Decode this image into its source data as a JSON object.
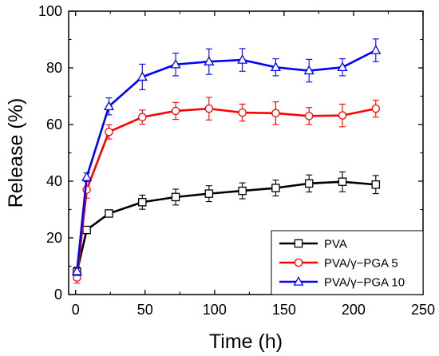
{
  "chart_data": {
    "type": "line",
    "xlabel": "Time (h)",
    "ylabel": "Release (%)",
    "xlim": [
      -5,
      250
    ],
    "ylim": [
      0,
      100
    ],
    "xticks": [
      0,
      50,
      100,
      150,
      200,
      250
    ],
    "yticks": [
      0,
      20,
      40,
      60,
      80,
      100
    ],
    "xtick_labels": [
      "0",
      "50",
      "100",
      "150",
      "200",
      "250"
    ],
    "ytick_labels": [
      "0",
      "20",
      "40",
      "60",
      "80",
      "100"
    ],
    "grid": false,
    "legend_position": "bottom-right",
    "x": [
      1,
      8,
      24,
      48,
      72,
      96,
      120,
      144,
      168,
      192,
      216
    ],
    "series": [
      {
        "name": "PVA",
        "color": "#000000",
        "marker": "square",
        "values": [
          8,
          22.8,
          28.6,
          32.6,
          34.4,
          35.6,
          36.6,
          37.6,
          39.2,
          39.8,
          38.8
        ],
        "errors": [
          1.5,
          0.8,
          1.0,
          2.5,
          2.8,
          2.8,
          2.8,
          2.8,
          3.0,
          3.5,
          3.2
        ]
      },
      {
        "name": "PVA/γ−PGA 5",
        "color": "#ff0000",
        "marker": "circle",
        "values": [
          6,
          37,
          57.4,
          62.6,
          64.8,
          65.6,
          64.2,
          64,
          63,
          63.2,
          65.6
        ],
        "errors": [
          2.0,
          3.0,
          2.5,
          2.5,
          3.0,
          4.0,
          3.0,
          4.0,
          3.0,
          4.0,
          3.0
        ]
      },
      {
        "name": "PVA/γ−PGA 10",
        "color": "#0000ff",
        "marker": "triangle",
        "values": [
          8.2,
          41.4,
          66.4,
          76.8,
          81.2,
          82.2,
          82.8,
          80.2,
          79,
          80.2,
          86.2
        ],
        "errors": [
          1.5,
          1.5,
          3.0,
          4.5,
          4.0,
          4.5,
          4.0,
          3.0,
          4.0,
          3.0,
          4.0
        ]
      }
    ]
  }
}
